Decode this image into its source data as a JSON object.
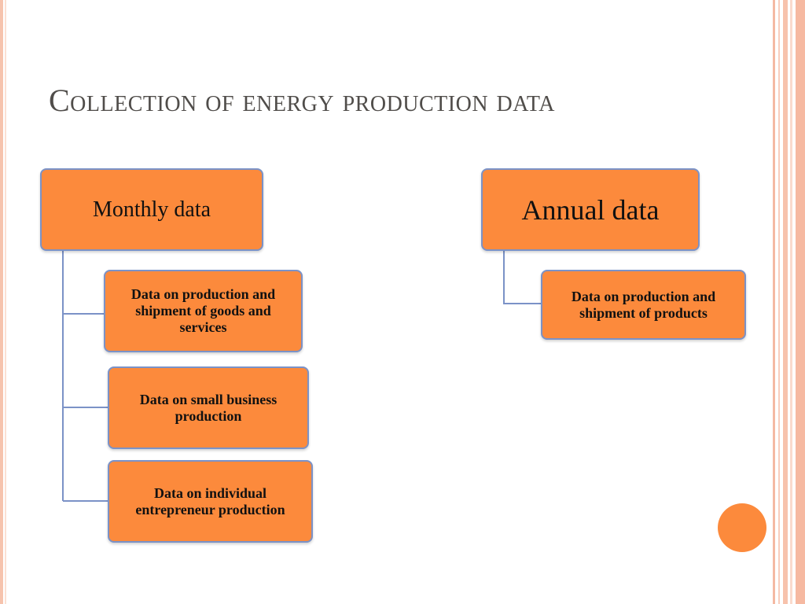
{
  "slide": {
    "title": "Collection of energy production data"
  },
  "diagram": {
    "monthly": {
      "label": "Monthly data",
      "children": [
        "Data on production and shipment of goods and services",
        "Data on small business production",
        "Data on individual entrepreneur production"
      ]
    },
    "annual": {
      "label": "Annual data",
      "children": [
        "Data on production and shipment of products"
      ]
    }
  },
  "colors": {
    "node_fill": "#fc8a3c",
    "node_border": "#7b92c7",
    "connector": "#7b92c7",
    "title_text": "#504d4a",
    "accent_border": "#f6c3ad"
  }
}
